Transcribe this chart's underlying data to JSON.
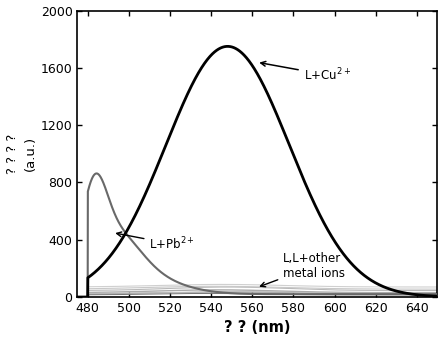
{
  "xlim": [
    475,
    650
  ],
  "ylim": [
    0,
    2000
  ],
  "xticks": [
    480,
    500,
    520,
    540,
    560,
    580,
    600,
    620,
    640
  ],
  "yticks": [
    0,
    400,
    800,
    1200,
    1600,
    2000
  ],
  "xlabel": "? ? (nm)",
  "ylabel": "? ? ? ?\n(a.u.)",
  "background_color": "#ffffff",
  "line_color_cu": "#000000",
  "line_color_pb": "#696969",
  "annotation_cu": "L+Cu$^{2+}$",
  "annotation_pb": "L+Pb$^{2+}$",
  "annotation_others": "L,L+other\nmetal ions",
  "cu_mu": 548,
  "cu_sigma": 30,
  "cu_amp": 1750,
  "pb_mu": 487,
  "pb_sigma1": 8,
  "pb_amp1": 520,
  "pb_sigma2": 25,
  "pb_amp2": 280
}
